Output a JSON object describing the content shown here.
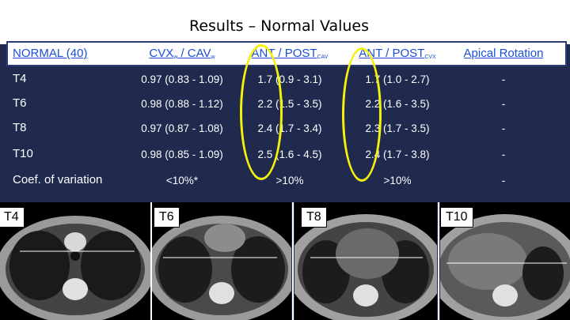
{
  "title": "Results – Normal Values",
  "table": {
    "header": {
      "col0": "NORMAL (40)",
      "col1_main": "CVX",
      "col1_sub": "w",
      "col1_mid": " / CAV",
      "col1_sub2": "w",
      "col2_main": "ANT / POST",
      "col2_sub": "CAV",
      "col3_main": "ANT / POST",
      "col3_sub": "CVX",
      "col4": "Apical Rotation"
    },
    "rows": [
      {
        "label": "T4",
        "c1": "0.97 (0.83 - 1.09)",
        "c2": "1.7 (0.9 - 3.1)",
        "c3": "1.7 (1.0 - 2.7)",
        "c4": "-"
      },
      {
        "label": "T6",
        "c1": "0.98 (0.88 - 1.12)",
        "c2": "2.2 (1.5 - 3.5)",
        "c3": "2.2 (1.6 - 3.5)",
        "c4": "-"
      },
      {
        "label": "T8",
        "c1": "0.97 (0.87 - 1.08)",
        "c2": "2.4 (1.7 - 3.4)",
        "c3": "2.3 (1.7 - 3.5)",
        "c4": "-"
      },
      {
        "label": "T10",
        "c1": "0.98 (0.85 - 1.09)",
        "c2": "2.5 (1.6 - 4.5)",
        "c3": "2.4 (1.7 - 3.8)",
        "c4": "-"
      },
      {
        "label": "Coef. of variation",
        "c1": "<10%*",
        "c2": ">10%",
        "c3": ">10%",
        "c4": "-"
      }
    ]
  },
  "scans": [
    {
      "label": "T4"
    },
    {
      "label": "T6"
    },
    {
      "label": "T8"
    },
    {
      "label": "T10"
    }
  ],
  "colors": {
    "background": "#1f2a4e",
    "header_text": "#1b4fd6",
    "highlight": "#f4f20a"
  }
}
